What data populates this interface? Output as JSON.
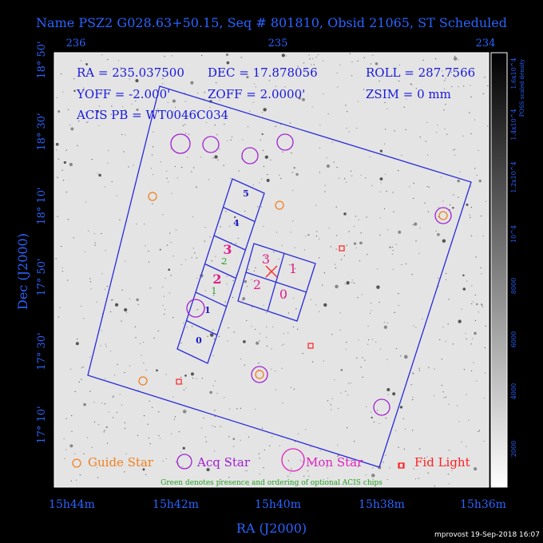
{
  "title": "Name PSZ2 G028.63+50.15, Seq # 801810, Obsid 21065, ST Scheduled",
  "top_axis": [
    "236",
    "235",
    "234"
  ],
  "left_axis": [
    "18° 50'",
    "18° 30'",
    "18° 10'",
    "17° 50'",
    "17° 30'",
    "17° 10'"
  ],
  "bottom_axis": [
    "15h44m",
    "15h42m",
    "15h40m",
    "15h38m",
    "15h36m"
  ],
  "x_label": "RA (J2000)",
  "y_label": "Dec (J2000)",
  "info": [
    "RA = 235.037500",
    "DEC = 17.878056",
    "ROLL = 287.7566",
    "YOFF = -2.000'",
    "ZOFF = 2.0000'",
    "ZSIM = 0 mm",
    "ACIS PB = WT0046C034"
  ],
  "acis_i_chips": [
    "3",
    "1",
    "2",
    "0"
  ],
  "acis_s_chips": [
    "5",
    "4",
    "3",
    "2",
    "1",
    "0"
  ],
  "optional_chips": [
    "2",
    "1"
  ],
  "legend": [
    "Guide Star",
    "Acq Star",
    "Mon Star",
    "Fid Light"
  ],
  "note": "Green denotes presence and ordering of optional ACIS chips",
  "colorbar": {
    "label": "POSS scaled density",
    "ticks": [
      "2000",
      "4000",
      "6000",
      "8000",
      "10^4",
      "1.2x10^4",
      "1.4x10^4",
      "1.6x10^4"
    ]
  },
  "footer": "mprovost 19-Sep-2018 16:07"
}
